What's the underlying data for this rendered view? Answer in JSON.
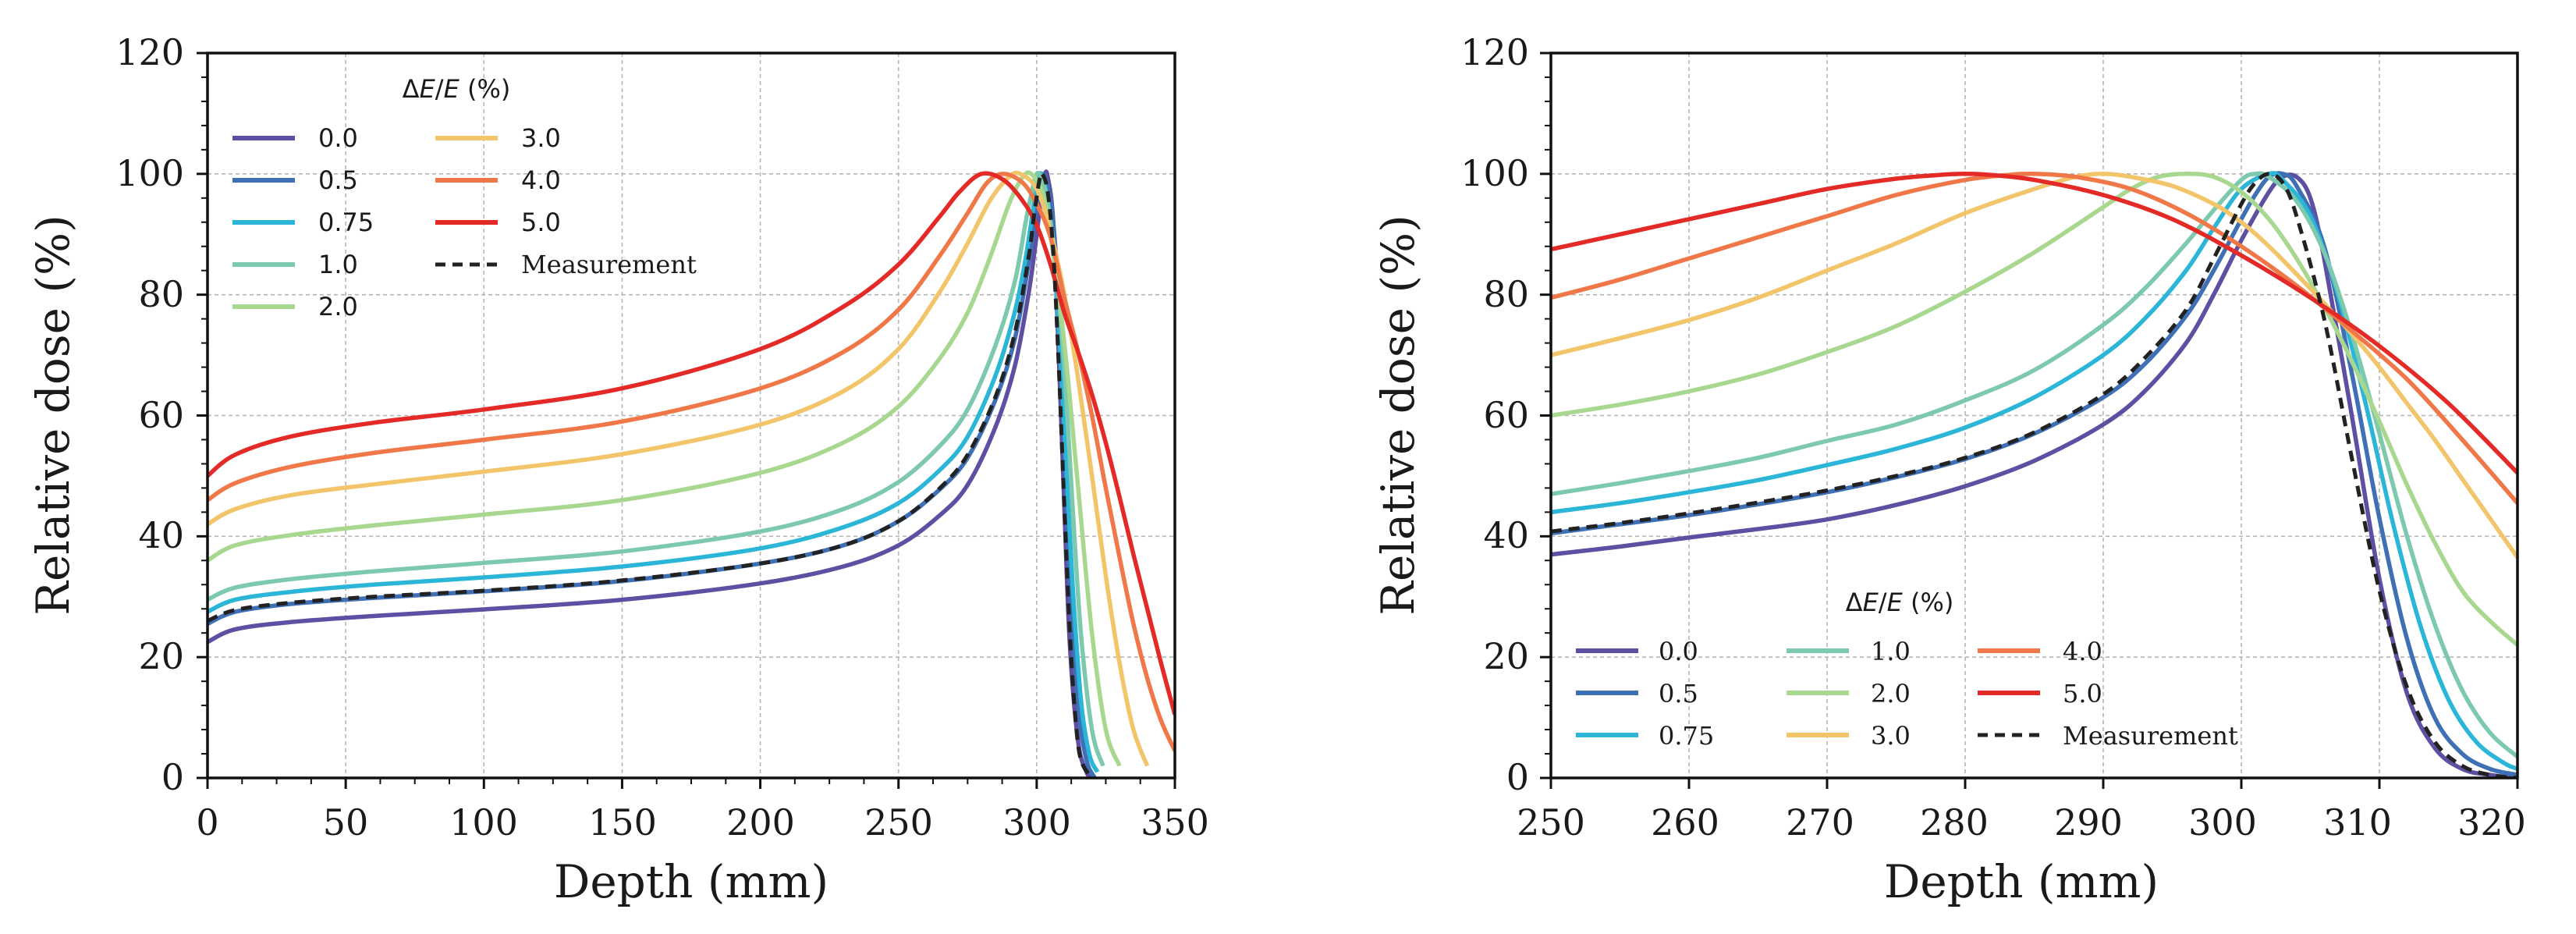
{
  "chart_data": [
    {
      "type": "line",
      "xlabel": "Depth (mm)",
      "ylabel": "Relative dose (%)",
      "xlim": [
        0,
        350
      ],
      "ylim": [
        0,
        120
      ],
      "xticks": [
        "0",
        "50",
        "100",
        "150",
        "200",
        "250",
        "300",
        "350"
      ],
      "yticks": [
        "0",
        "20",
        "40",
        "60",
        "80",
        "100",
        "120"
      ],
      "grid": true,
      "legend": {
        "title_prefix": "Δ",
        "title_var1": "E",
        "title_sep": "/",
        "title_var2": "E",
        "title_suffix": " (%)",
        "placement": "top-left",
        "columns": 2
      },
      "series": [
        {
          "name": "0.0",
          "color": "#5e4fa2",
          "style": "solid",
          "x": [
            0,
            10,
            30,
            60,
            100,
            150,
            200,
            230,
            250,
            265,
            275,
            285,
            292,
            297,
            300,
            302,
            303,
            304,
            306,
            308,
            310,
            312,
            315,
            318,
            320
          ],
          "y": [
            22.5,
            24.6,
            25.8,
            26.8,
            27.9,
            29.5,
            32.2,
            35.0,
            38.5,
            43.5,
            48.5,
            58.0,
            68.0,
            80.0,
            90.0,
            97.5,
            100.0,
            99.5,
            92.0,
            70.0,
            45.0,
            22.0,
            6.0,
            1.0,
            0.0
          ]
        },
        {
          "name": "0.5",
          "color": "#3f6fb5",
          "style": "solid",
          "x": [
            0,
            10,
            30,
            60,
            100,
            150,
            200,
            230,
            250,
            265,
            275,
            285,
            292,
            297,
            300,
            301,
            302,
            304,
            306,
            308,
            310,
            312,
            315,
            318,
            321
          ],
          "y": [
            25.5,
            27.5,
            28.8,
            29.8,
            30.9,
            32.6,
            35.5,
            38.5,
            42.5,
            47.8,
            53.0,
            62.5,
            72.5,
            85.0,
            95.0,
            98.0,
            100.0,
            98.0,
            92.0,
            78.0,
            55.0,
            32.0,
            12.0,
            3.0,
            0.0
          ]
        },
        {
          "name": "0.75",
          "color": "#2bb6d8",
          "style": "solid",
          "x": [
            0,
            10,
            30,
            60,
            100,
            150,
            200,
            230,
            250,
            265,
            275,
            285,
            292,
            296,
            299,
            301,
            303,
            305,
            307,
            310,
            313,
            316,
            319,
            322
          ],
          "y": [
            27.5,
            29.5,
            30.8,
            32.0,
            33.2,
            35.0,
            38.0,
            41.5,
            45.5,
            51.0,
            56.5,
            66.5,
            77.0,
            86.0,
            95.0,
            100.0,
            98.0,
            92.0,
            82.0,
            58.0,
            32.0,
            13.0,
            4.0,
            1.0
          ]
        },
        {
          "name": "1.0",
          "color": "#7dc9ae",
          "style": "solid",
          "x": [
            0,
            10,
            30,
            60,
            100,
            150,
            200,
            230,
            250,
            265,
            275,
            285,
            292,
            296,
            298,
            300,
            302,
            304,
            307,
            310,
            313,
            316,
            320,
            324
          ],
          "y": [
            29.5,
            31.5,
            32.9,
            34.2,
            35.6,
            37.5,
            40.8,
            44.5,
            49.0,
            55.0,
            61.0,
            71.5,
            82.0,
            92.0,
            96.5,
            100.0,
            99.0,
            95.0,
            85.0,
            68.0,
            45.0,
            24.0,
            8.0,
            2.0
          ]
        },
        {
          "name": "2.0",
          "color": "#a8d88f",
          "style": "solid",
          "x": [
            0,
            10,
            30,
            60,
            100,
            150,
            200,
            230,
            250,
            265,
            275,
            283,
            290,
            295,
            298,
            302,
            305,
            310,
            315,
            320,
            325,
            330
          ],
          "y": [
            36.0,
            38.5,
            40.2,
            41.8,
            43.6,
            46.0,
            50.5,
            55.5,
            61.5,
            69.5,
            77.0,
            86.0,
            95.0,
            99.5,
            100.0,
            97.0,
            90.0,
            72.0,
            48.0,
            24.0,
            8.0,
            2.0
          ]
        },
        {
          "name": "3.0",
          "color": "#f2c56a",
          "style": "solid",
          "x": [
            0,
            10,
            30,
            60,
            100,
            150,
            200,
            230,
            250,
            265,
            275,
            283,
            290,
            294,
            300,
            305,
            310,
            315,
            320,
            325,
            330,
            335,
            340
          ],
          "y": [
            42.0,
            44.5,
            46.8,
            48.6,
            50.7,
            53.6,
            58.5,
            64.0,
            71.0,
            80.5,
            88.5,
            95.5,
            99.5,
            100.0,
            97.5,
            90.5,
            80.0,
            66.0,
            50.0,
            33.5,
            19.0,
            8.0,
            2.0
          ]
        },
        {
          "name": "4.0",
          "color": "#f07848",
          "style": "solid",
          "x": [
            0,
            10,
            30,
            60,
            100,
            150,
            200,
            230,
            250,
            265,
            275,
            282,
            288,
            295,
            300,
            305,
            310,
            315,
            320,
            325,
            330,
            335,
            340,
            345,
            350
          ],
          "y": [
            46.0,
            48.8,
            51.5,
            53.8,
            56.0,
            59.0,
            64.5,
            70.5,
            77.5,
            86.5,
            93.5,
            98.5,
            100.0,
            98.5,
            95.0,
            89.5,
            79.5,
            70.5,
            60.0,
            48.0,
            36.5,
            25.5,
            16.5,
            9.5,
            4.5
          ]
        },
        {
          "name": "5.0",
          "color": "#e42a26",
          "style": "solid",
          "x": [
            0,
            10,
            30,
            60,
            100,
            150,
            200,
            230,
            250,
            265,
            272,
            280,
            288,
            295,
            300,
            305,
            310,
            315,
            320,
            325,
            330,
            335,
            340,
            345,
            350
          ],
          "y": [
            50.0,
            53.5,
            56.5,
            58.8,
            61.0,
            64.5,
            71.0,
            78.0,
            85.0,
            93.0,
            97.0,
            100.0,
            99.0,
            95.5,
            91.5,
            85.0,
            77.0,
            70.5,
            63.5,
            55.5,
            46.5,
            37.0,
            28.0,
            19.0,
            10.5
          ]
        },
        {
          "name": "Measurement",
          "color": "#222222",
          "style": "dashed",
          "x": [
            0,
            10,
            30,
            60,
            100,
            150,
            200,
            230,
            250,
            265,
            275,
            285,
            292,
            297,
            299,
            301,
            302,
            304,
            306,
            308,
            310,
            312,
            314,
            316,
            320
          ],
          "y": [
            26.0,
            27.8,
            29.0,
            30.0,
            31.0,
            32.7,
            35.5,
            38.5,
            42.5,
            48.0,
            53.5,
            63.0,
            73.5,
            86.0,
            93.0,
            99.0,
            100.0,
            97.0,
            87.0,
            68.0,
            45.0,
            24.0,
            10.0,
            3.0,
            0.0
          ]
        }
      ]
    },
    {
      "type": "line",
      "xlabel": "Depth (mm)",
      "ylabel": "Relative dose (%)",
      "xlim": [
        250,
        320
      ],
      "ylim": [
        0,
        120
      ],
      "xticks": [
        "250",
        "260",
        "270",
        "280",
        "290",
        "300",
        "310",
        "320"
      ],
      "yticks": [
        "0",
        "20",
        "40",
        "60",
        "80",
        "100",
        "120"
      ],
      "grid": true,
      "legend": {
        "title_prefix": "Δ",
        "title_var1": "E",
        "title_sep": "/",
        "title_var2": "E",
        "title_suffix": " (%)",
        "placement": "bottom-center",
        "columns": 3
      },
      "series": [
        {
          "name": "0.0",
          "color": "#5e4fa2",
          "style": "solid",
          "x": [
            250,
            255,
            260,
            265,
            270,
            275,
            280,
            285,
            290,
            293,
            296,
            298,
            300,
            302,
            303,
            304,
            305,
            306,
            308,
            310,
            312,
            314,
            316,
            318,
            320
          ],
          "y": [
            37.0,
            38.3,
            39.8,
            41.2,
            42.8,
            45.2,
            48.3,
            52.5,
            58.5,
            64.0,
            72.0,
            80.0,
            89.0,
            97.0,
            99.5,
            99.5,
            96.0,
            86.0,
            60.0,
            33.0,
            14.0,
            5.0,
            1.5,
            0.5,
            0.0
          ]
        },
        {
          "name": "0.5",
          "color": "#3f6fb5",
          "style": "solid",
          "x": [
            250,
            255,
            260,
            265,
            270,
            275,
            280,
            285,
            290,
            293,
            296,
            298,
            300,
            301,
            302,
            303,
            304,
            306,
            308,
            310,
            312,
            314,
            316,
            318,
            320
          ],
          "y": [
            40.5,
            42.0,
            43.5,
            45.3,
            47.3,
            49.8,
            52.8,
            57.0,
            63.0,
            68.5,
            76.5,
            84.0,
            92.5,
            96.5,
            99.5,
            100.0,
            98.0,
            88.0,
            67.0,
            43.0,
            23.0,
            10.0,
            4.0,
            1.5,
            0.5
          ]
        },
        {
          "name": "0.75",
          "color": "#2bb6d8",
          "style": "solid",
          "x": [
            250,
            255,
            260,
            265,
            270,
            275,
            280,
            285,
            290,
            293,
            296,
            298,
            300,
            302,
            303,
            305,
            307,
            309,
            311,
            313,
            315,
            317,
            319,
            320
          ],
          "y": [
            44.0,
            45.5,
            47.3,
            49.3,
            51.8,
            54.5,
            58.0,
            63.0,
            70.0,
            76.0,
            84.0,
            91.0,
            97.5,
            100.0,
            99.0,
            93.0,
            80.0,
            62.0,
            42.0,
            25.0,
            13.0,
            6.0,
            2.5,
            1.5
          ]
        },
        {
          "name": "1.0",
          "color": "#7dc9ae",
          "style": "solid",
          "x": [
            250,
            255,
            260,
            265,
            270,
            275,
            280,
            285,
            290,
            293,
            296,
            298,
            300,
            301,
            302,
            304,
            306,
            308,
            310,
            312,
            314,
            316,
            318,
            320
          ],
          "y": [
            47.0,
            48.8,
            50.8,
            53.0,
            55.8,
            58.5,
            62.5,
            67.5,
            75.0,
            81.0,
            88.5,
            94.0,
            99.0,
            100.0,
            99.5,
            95.5,
            87.0,
            73.5,
            57.0,
            40.0,
            25.5,
            14.5,
            7.5,
            3.5
          ]
        },
        {
          "name": "2.0",
          "color": "#a8d88f",
          "style": "solid",
          "x": [
            250,
            255,
            260,
            265,
            270,
            275,
            280,
            285,
            290,
            292,
            294,
            296,
            298,
            300,
            302,
            304,
            306,
            308,
            310,
            312,
            314,
            316,
            318,
            320
          ],
          "y": [
            60.0,
            61.8,
            64.0,
            66.8,
            70.5,
            74.8,
            80.5,
            87.0,
            94.5,
            97.5,
            99.5,
            100.0,
            99.5,
            97.0,
            92.5,
            86.0,
            78.0,
            69.0,
            59.0,
            48.5,
            39.0,
            31.0,
            26.0,
            22.0
          ]
        },
        {
          "name": "3.0",
          "color": "#f2c56a",
          "style": "solid",
          "x": [
            250,
            255,
            260,
            265,
            270,
            275,
            280,
            285,
            288,
            290,
            292,
            295,
            298,
            300,
            302,
            305,
            308,
            310,
            312,
            314,
            316,
            318,
            320
          ],
          "y": [
            70.0,
            72.8,
            75.8,
            79.5,
            84.0,
            88.5,
            93.5,
            97.5,
            99.5,
            100.0,
            99.5,
            98.0,
            95.0,
            92.0,
            88.0,
            81.0,
            73.5,
            68.0,
            62.0,
            56.0,
            49.5,
            43.0,
            36.5
          ]
        },
        {
          "name": "4.0",
          "color": "#f07848",
          "style": "solid",
          "x": [
            250,
            255,
            260,
            265,
            270,
            275,
            280,
            283,
            285,
            288,
            292,
            296,
            300,
            304,
            308,
            312,
            316,
            320
          ],
          "y": [
            79.5,
            82.5,
            86.0,
            89.5,
            93.0,
            96.5,
            99.0,
            99.8,
            100.0,
            99.5,
            97.5,
            93.5,
            88.0,
            81.5,
            74.0,
            66.0,
            56.0,
            45.5
          ]
        },
        {
          "name": "5.0",
          "color": "#e42a26",
          "style": "solid",
          "x": [
            250,
            255,
            260,
            265,
            270,
            275,
            278,
            280,
            282,
            285,
            290,
            295,
            300,
            305,
            310,
            315,
            320
          ],
          "y": [
            87.5,
            90.0,
            92.5,
            95.0,
            97.5,
            99.2,
            99.8,
            100.0,
            99.8,
            99.0,
            96.5,
            92.5,
            86.5,
            79.5,
            71.5,
            62.0,
            50.5
          ]
        },
        {
          "name": "Measurement",
          "color": "#222222",
          "style": "dashed",
          "x": [
            250,
            255,
            260,
            265,
            270,
            275,
            280,
            285,
            290,
            293,
            296,
            298,
            300,
            301,
            302,
            303,
            304,
            306,
            308,
            310,
            312,
            314,
            316,
            318,
            320
          ],
          "y": [
            40.8,
            42.2,
            43.8,
            45.6,
            47.6,
            50.0,
            53.0,
            57.2,
            63.5,
            69.5,
            77.5,
            86.0,
            95.0,
            98.5,
            100.0,
            98.5,
            93.0,
            76.0,
            53.0,
            31.0,
            15.0,
            6.0,
            2.0,
            0.5,
            0.0
          ]
        }
      ]
    }
  ]
}
